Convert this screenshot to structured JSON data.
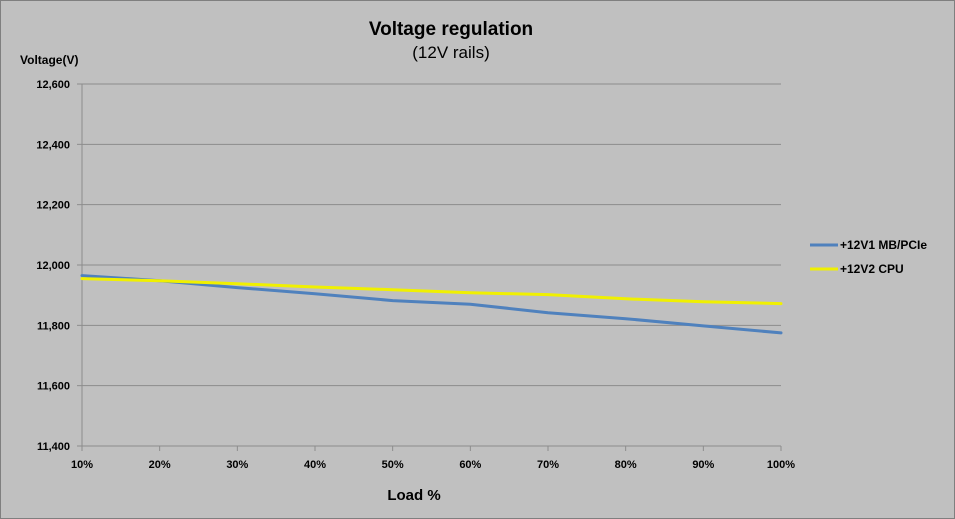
{
  "chart_data": {
    "type": "line",
    "title": "Voltage regulation",
    "subtitle": "(12V rails)",
    "ylabel": "Voltage(V)",
    "xlabel": "Load %",
    "x": [
      "10%",
      "20%",
      "30%",
      "40%",
      "50%",
      "60%",
      "70%",
      "80%",
      "90%",
      "100%"
    ],
    "ylim": [
      11400,
      12600
    ],
    "yticks": [
      11400,
      11600,
      11800,
      12000,
      12200,
      12400,
      12600
    ],
    "ytick_labels": [
      "11,400",
      "11,600",
      "11,800",
      "12,000",
      "12,200",
      "12,400",
      "12,600"
    ],
    "grid": true,
    "legend_position": "right",
    "series": [
      {
        "name": "+12V1 MB/PCIe",
        "color": "#4f81bd",
        "values": [
          11965,
          11948,
          11925,
          11905,
          11882,
          11870,
          11842,
          11822,
          11798,
          11775
        ]
      },
      {
        "name": "+12V2 CPU",
        "color": "#f0f000",
        "values": [
          11955,
          11948,
          11938,
          11927,
          11918,
          11908,
          11902,
          11888,
          11878,
          11872
        ]
      }
    ]
  }
}
